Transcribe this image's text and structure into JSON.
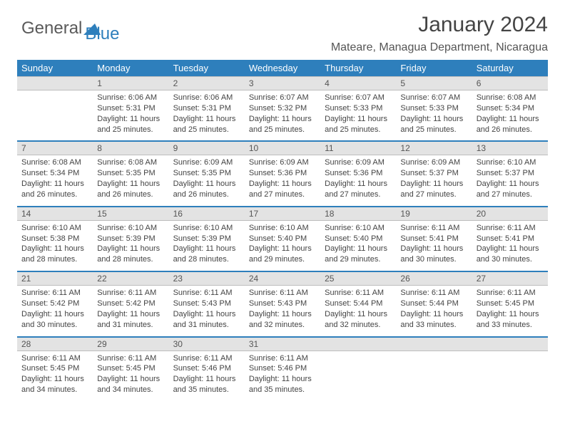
{
  "brand": {
    "part1": "General",
    "part2": "Blue"
  },
  "title": "January 2024",
  "location": "Mateare, Managua Department, Nicaragua",
  "colors": {
    "accent": "#2e7fbc",
    "daynum_bg": "#e3e3e3",
    "text": "#444444"
  },
  "day_headers": [
    "Sunday",
    "Monday",
    "Tuesday",
    "Wednesday",
    "Thursday",
    "Friday",
    "Saturday"
  ],
  "weeks": [
    {
      "nums": [
        "",
        "1",
        "2",
        "3",
        "4",
        "5",
        "6"
      ],
      "cells": [
        null,
        {
          "sr": "Sunrise: 6:06 AM",
          "ss": "Sunset: 5:31 PM",
          "d1": "Daylight: 11 hours",
          "d2": "and 25 minutes."
        },
        {
          "sr": "Sunrise: 6:06 AM",
          "ss": "Sunset: 5:31 PM",
          "d1": "Daylight: 11 hours",
          "d2": "and 25 minutes."
        },
        {
          "sr": "Sunrise: 6:07 AM",
          "ss": "Sunset: 5:32 PM",
          "d1": "Daylight: 11 hours",
          "d2": "and 25 minutes."
        },
        {
          "sr": "Sunrise: 6:07 AM",
          "ss": "Sunset: 5:33 PM",
          "d1": "Daylight: 11 hours",
          "d2": "and 25 minutes."
        },
        {
          "sr": "Sunrise: 6:07 AM",
          "ss": "Sunset: 5:33 PM",
          "d1": "Daylight: 11 hours",
          "d2": "and 25 minutes."
        },
        {
          "sr": "Sunrise: 6:08 AM",
          "ss": "Sunset: 5:34 PM",
          "d1": "Daylight: 11 hours",
          "d2": "and 26 minutes."
        }
      ]
    },
    {
      "nums": [
        "7",
        "8",
        "9",
        "10",
        "11",
        "12",
        "13"
      ],
      "cells": [
        {
          "sr": "Sunrise: 6:08 AM",
          "ss": "Sunset: 5:34 PM",
          "d1": "Daylight: 11 hours",
          "d2": "and 26 minutes."
        },
        {
          "sr": "Sunrise: 6:08 AM",
          "ss": "Sunset: 5:35 PM",
          "d1": "Daylight: 11 hours",
          "d2": "and 26 minutes."
        },
        {
          "sr": "Sunrise: 6:09 AM",
          "ss": "Sunset: 5:35 PM",
          "d1": "Daylight: 11 hours",
          "d2": "and 26 minutes."
        },
        {
          "sr": "Sunrise: 6:09 AM",
          "ss": "Sunset: 5:36 PM",
          "d1": "Daylight: 11 hours",
          "d2": "and 27 minutes."
        },
        {
          "sr": "Sunrise: 6:09 AM",
          "ss": "Sunset: 5:36 PM",
          "d1": "Daylight: 11 hours",
          "d2": "and 27 minutes."
        },
        {
          "sr": "Sunrise: 6:09 AM",
          "ss": "Sunset: 5:37 PM",
          "d1": "Daylight: 11 hours",
          "d2": "and 27 minutes."
        },
        {
          "sr": "Sunrise: 6:10 AM",
          "ss": "Sunset: 5:37 PM",
          "d1": "Daylight: 11 hours",
          "d2": "and 27 minutes."
        }
      ]
    },
    {
      "nums": [
        "14",
        "15",
        "16",
        "17",
        "18",
        "19",
        "20"
      ],
      "cells": [
        {
          "sr": "Sunrise: 6:10 AM",
          "ss": "Sunset: 5:38 PM",
          "d1": "Daylight: 11 hours",
          "d2": "and 28 minutes."
        },
        {
          "sr": "Sunrise: 6:10 AM",
          "ss": "Sunset: 5:39 PM",
          "d1": "Daylight: 11 hours",
          "d2": "and 28 minutes."
        },
        {
          "sr": "Sunrise: 6:10 AM",
          "ss": "Sunset: 5:39 PM",
          "d1": "Daylight: 11 hours",
          "d2": "and 28 minutes."
        },
        {
          "sr": "Sunrise: 6:10 AM",
          "ss": "Sunset: 5:40 PM",
          "d1": "Daylight: 11 hours",
          "d2": "and 29 minutes."
        },
        {
          "sr": "Sunrise: 6:10 AM",
          "ss": "Sunset: 5:40 PM",
          "d1": "Daylight: 11 hours",
          "d2": "and 29 minutes."
        },
        {
          "sr": "Sunrise: 6:11 AM",
          "ss": "Sunset: 5:41 PM",
          "d1": "Daylight: 11 hours",
          "d2": "and 30 minutes."
        },
        {
          "sr": "Sunrise: 6:11 AM",
          "ss": "Sunset: 5:41 PM",
          "d1": "Daylight: 11 hours",
          "d2": "and 30 minutes."
        }
      ]
    },
    {
      "nums": [
        "21",
        "22",
        "23",
        "24",
        "25",
        "26",
        "27"
      ],
      "cells": [
        {
          "sr": "Sunrise: 6:11 AM",
          "ss": "Sunset: 5:42 PM",
          "d1": "Daylight: 11 hours",
          "d2": "and 30 minutes."
        },
        {
          "sr": "Sunrise: 6:11 AM",
          "ss": "Sunset: 5:42 PM",
          "d1": "Daylight: 11 hours",
          "d2": "and 31 minutes."
        },
        {
          "sr": "Sunrise: 6:11 AM",
          "ss": "Sunset: 5:43 PM",
          "d1": "Daylight: 11 hours",
          "d2": "and 31 minutes."
        },
        {
          "sr": "Sunrise: 6:11 AM",
          "ss": "Sunset: 5:43 PM",
          "d1": "Daylight: 11 hours",
          "d2": "and 32 minutes."
        },
        {
          "sr": "Sunrise: 6:11 AM",
          "ss": "Sunset: 5:44 PM",
          "d1": "Daylight: 11 hours",
          "d2": "and 32 minutes."
        },
        {
          "sr": "Sunrise: 6:11 AM",
          "ss": "Sunset: 5:44 PM",
          "d1": "Daylight: 11 hours",
          "d2": "and 33 minutes."
        },
        {
          "sr": "Sunrise: 6:11 AM",
          "ss": "Sunset: 5:45 PM",
          "d1": "Daylight: 11 hours",
          "d2": "and 33 minutes."
        }
      ]
    },
    {
      "nums": [
        "28",
        "29",
        "30",
        "31",
        "",
        "",
        ""
      ],
      "cells": [
        {
          "sr": "Sunrise: 6:11 AM",
          "ss": "Sunset: 5:45 PM",
          "d1": "Daylight: 11 hours",
          "d2": "and 34 minutes."
        },
        {
          "sr": "Sunrise: 6:11 AM",
          "ss": "Sunset: 5:45 PM",
          "d1": "Daylight: 11 hours",
          "d2": "and 34 minutes."
        },
        {
          "sr": "Sunrise: 6:11 AM",
          "ss": "Sunset: 5:46 PM",
          "d1": "Daylight: 11 hours",
          "d2": "and 35 minutes."
        },
        {
          "sr": "Sunrise: 6:11 AM",
          "ss": "Sunset: 5:46 PM",
          "d1": "Daylight: 11 hours",
          "d2": "and 35 minutes."
        },
        null,
        null,
        null
      ]
    }
  ]
}
